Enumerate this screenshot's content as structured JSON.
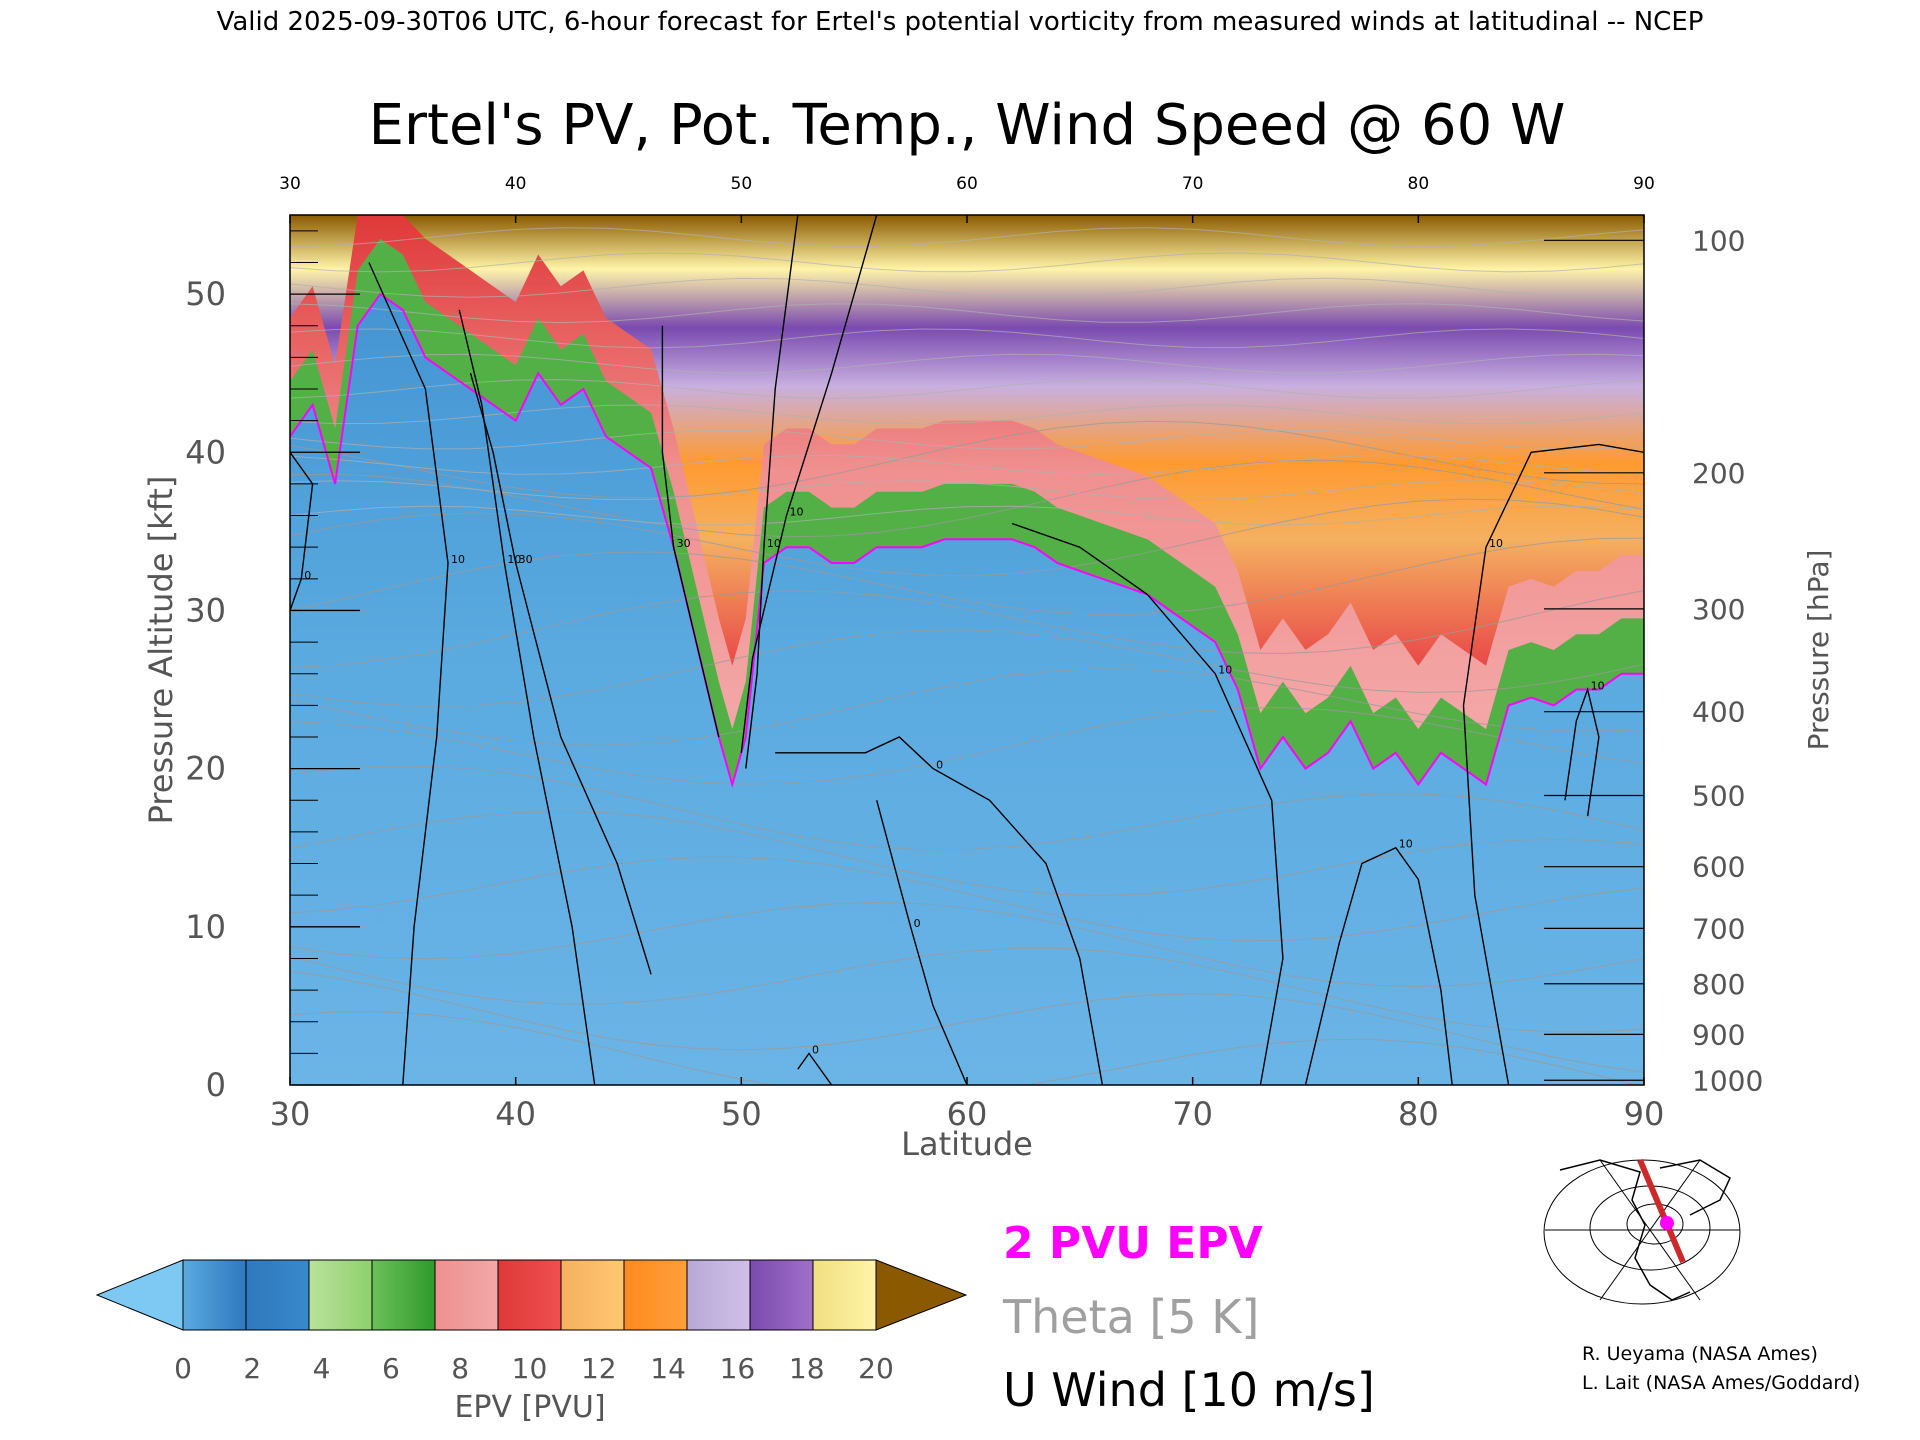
{
  "header": {
    "valid_line": "Valid 2025-09-30T06 UTC, 6-hour forecast for Ertel's potential vorticity from measured winds at latitudinal -- NCEP"
  },
  "chart_data": {
    "type": "heatmap",
    "title": "Ertel's PV, Pot. Temp., Wind Speed @ 60 W",
    "xlabel": "Latitude",
    "ylabel": "Pressure Altitude [kft]",
    "y2label": "Pressure [hPa]",
    "xlim": [
      30,
      90
    ],
    "ylim": [
      0,
      55
    ],
    "x_ticks": [
      "30",
      "40",
      "50",
      "60",
      "70",
      "80",
      "90"
    ],
    "top_ticks": [
      "30",
      "40",
      "50",
      "60",
      "70",
      "80",
      "90"
    ],
    "y_ticks": [
      "0",
      "10",
      "20",
      "30",
      "40",
      "50"
    ],
    "pressure_ticks": [
      {
        "label": "100",
        "kft": 53.4
      },
      {
        "label": "200",
        "kft": 38.7
      },
      {
        "label": "300",
        "kft": 30.1
      },
      {
        "label": "400",
        "kft": 23.6
      },
      {
        "label": "500",
        "kft": 18.3
      },
      {
        "label": "600",
        "kft": 13.8
      },
      {
        "label": "700",
        "kft": 9.9
      },
      {
        "label": "800",
        "kft": 6.4
      },
      {
        "label": "900",
        "kft": 3.2
      },
      {
        "label": "1000",
        "kft": 0.3
      }
    ],
    "tropopause_2pvu": [
      [
        30,
        41
      ],
      [
        31,
        43
      ],
      [
        32,
        38
      ],
      [
        33,
        48
      ],
      [
        34,
        50
      ],
      [
        35,
        49
      ],
      [
        36,
        46
      ],
      [
        37,
        45
      ],
      [
        38,
        44
      ],
      [
        39,
        43
      ],
      [
        40,
        42
      ],
      [
        41,
        45
      ],
      [
        42,
        43
      ],
      [
        43,
        44
      ],
      [
        44,
        41
      ],
      [
        45,
        40
      ],
      [
        46,
        39
      ],
      [
        47,
        34
      ],
      [
        48,
        28
      ],
      [
        49,
        22
      ],
      [
        49.6,
        19
      ],
      [
        50.2,
        22
      ],
      [
        51,
        33
      ],
      [
        52,
        34
      ],
      [
        53,
        34
      ],
      [
        54,
        33
      ],
      [
        55,
        33
      ],
      [
        56,
        34
      ],
      [
        57,
        34
      ],
      [
        58,
        34
      ],
      [
        59,
        34.5
      ],
      [
        60,
        34.5
      ],
      [
        61,
        34.5
      ],
      [
        62,
        34.5
      ],
      [
        63,
        34
      ],
      [
        64,
        33
      ],
      [
        65,
        32.5
      ],
      [
        66,
        32
      ],
      [
        67,
        31.5
      ],
      [
        68,
        31
      ],
      [
        69,
        30
      ],
      [
        70,
        29
      ],
      [
        71,
        28
      ],
      [
        72,
        25
      ],
      [
        73,
        20
      ],
      [
        74,
        22
      ],
      [
        75,
        20
      ],
      [
        76,
        21
      ],
      [
        77,
        23
      ],
      [
        78,
        20
      ],
      [
        79,
        21
      ],
      [
        80,
        19
      ],
      [
        81,
        21
      ],
      [
        82,
        20
      ],
      [
        83,
        19
      ],
      [
        84,
        24
      ],
      [
        85,
        24.5
      ],
      [
        86,
        24
      ],
      [
        87,
        25
      ],
      [
        88,
        25
      ],
      [
        89,
        26
      ],
      [
        90,
        26
      ]
    ],
    "wind_contours": [
      {
        "label": "10",
        "points": [
          [
            35,
            0
          ],
          [
            35.5,
            10
          ],
          [
            36.5,
            22
          ],
          [
            37,
            33
          ],
          [
            36,
            44
          ],
          [
            33.5,
            52
          ]
        ]
      },
      {
        "label": "10",
        "points": [
          [
            43.5,
            0
          ],
          [
            42.5,
            10
          ],
          [
            40.8,
            22
          ],
          [
            39.5,
            33
          ],
          [
            38.5,
            43
          ],
          [
            37.5,
            49
          ]
        ]
      },
      {
        "label": "30",
        "points": [
          [
            46,
            7
          ],
          [
            44.5,
            14
          ],
          [
            42,
            22
          ],
          [
            40,
            33
          ],
          [
            39,
            40
          ],
          [
            38,
            45
          ]
        ]
      },
      {
        "label": "30",
        "points": [
          [
            49,
            22
          ],
          [
            48,
            28
          ],
          [
            47,
            34
          ],
          [
            46.5,
            40
          ],
          [
            46.5,
            48
          ]
        ]
      },
      {
        "label": "10",
        "points": [
          [
            52.5,
            55
          ],
          [
            51.5,
            44
          ],
          [
            51,
            34
          ],
          [
            50.7,
            26
          ],
          [
            50.2,
            20
          ]
        ]
      },
      {
        "label": "10",
        "points": [
          [
            56,
            55
          ],
          [
            54,
            45
          ],
          [
            52,
            36
          ],
          [
            50.5,
            27
          ],
          [
            50,
            21
          ]
        ]
      },
      {
        "label": "0",
        "points": [
          [
            66,
            0
          ],
          [
            65,
            8
          ],
          [
            63.5,
            14
          ],
          [
            61,
            18
          ],
          [
            58.5,
            20
          ],
          [
            57,
            22
          ],
          [
            55.5,
            21
          ],
          [
            53,
            21
          ],
          [
            51.5,
            21
          ]
        ]
      },
      {
        "label": "0",
        "points": [
          [
            60,
            0
          ],
          [
            58.5,
            5
          ],
          [
            57.5,
            10
          ],
          [
            56,
            18
          ]
        ]
      },
      {
        "label": "10",
        "points": [
          [
            73,
            0
          ],
          [
            74,
            8
          ],
          [
            73.5,
            18
          ],
          [
            71,
            26
          ],
          [
            68,
            31
          ],
          [
            65,
            34
          ],
          [
            62,
            35.5
          ]
        ]
      },
      {
        "label": "10",
        "points": [
          [
            75,
            0
          ],
          [
            76.5,
            9
          ],
          [
            77.5,
            14
          ],
          [
            79,
            15
          ],
          [
            80,
            13
          ],
          [
            81,
            6
          ],
          [
            81.5,
            0
          ]
        ]
      },
      {
        "label": "10",
        "points": [
          [
            84,
            0
          ],
          [
            82.5,
            12
          ],
          [
            82,
            24
          ],
          [
            83,
            34
          ],
          [
            85,
            40
          ],
          [
            88,
            40.5
          ],
          [
            90,
            40
          ]
        ]
      },
      {
        "label": "10",
        "points": [
          [
            86.5,
            18
          ],
          [
            87,
            23
          ],
          [
            87.5,
            25
          ],
          [
            88,
            22
          ],
          [
            87.5,
            17
          ]
        ]
      },
      {
        "label": "0",
        "points": [
          [
            30,
            40
          ],
          [
            31,
            38
          ],
          [
            30.5,
            32
          ],
          [
            30,
            30
          ]
        ]
      },
      {
        "label": "0",
        "points": [
          [
            54,
            0
          ],
          [
            53,
            2
          ],
          [
            52.5,
            1
          ]
        ]
      }
    ]
  },
  "colorbar": {
    "label": "EPV [PVU]",
    "min_color": "#7ec8f4",
    "max_color": "#8b5a00",
    "ticks": [
      "0",
      "2",
      "4",
      "6",
      "8",
      "10",
      "12",
      "14",
      "16",
      "18",
      "20"
    ],
    "segments": [
      [
        "#5aaae0",
        "#2f78bd"
      ],
      [
        "#2f78bd",
        "#3a88cc"
      ],
      [
        "#b9e39a",
        "#8ed06e"
      ],
      [
        "#6cc05b",
        "#2f9a2c"
      ],
      [
        "#ee9090",
        "#f4a7a7"
      ],
      [
        "#e03838",
        "#ee5050"
      ],
      [
        "#f5b060",
        "#ffc870"
      ],
      [
        "#ff8a20",
        "#ff9f3a"
      ],
      [
        "#b8a8d8",
        "#d0c0e8"
      ],
      [
        "#7a4ab0",
        "#a070c8"
      ],
      [
        "#f0e080",
        "#fff4a8"
      ]
    ]
  },
  "legend": {
    "items": [
      {
        "label": "2 PVU EPV",
        "color": "#ff00ff"
      },
      {
        "label": "Theta [5 K]",
        "color": "#a0a0a0"
      },
      {
        "label": "U Wind [10 m/s]",
        "color": "#000000"
      }
    ]
  },
  "credits": [
    "R. Ueyama (NASA Ames)",
    "L. Lait (NASA Ames/Goddard)"
  ]
}
